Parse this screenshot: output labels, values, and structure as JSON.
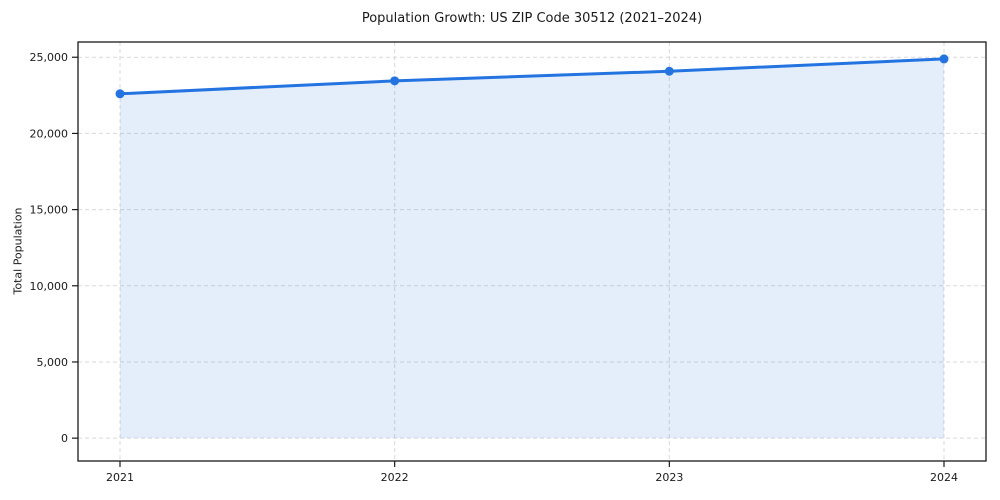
{
  "chart_data": {
    "type": "area",
    "title": "Population Growth: US ZIP Code 30512 (2021–2024)",
    "xlabel": "",
    "ylabel": "Total Population",
    "x": [
      2021,
      2022,
      2023,
      2024
    ],
    "xtick_labels": [
      "2021",
      "2022",
      "2023",
      "2024"
    ],
    "series": [
      {
        "name": "Total Population",
        "values": [
          22600,
          23450,
          24080,
          24890
        ]
      }
    ],
    "yticks": [
      0,
      5000,
      10000,
      15000,
      20000,
      25000
    ],
    "ytick_labels": [
      "0",
      "5,000",
      "10,000",
      "15,000",
      "20,000",
      "25,000"
    ],
    "ylim": [
      -1500,
      26000
    ],
    "grid": true,
    "legend_position": "none",
    "colors": {
      "line": "#2373e1",
      "marker": "#2373e1",
      "fill": "rgba(35, 115, 225, 0.12)",
      "grid": "#d9d9d9",
      "spine": "#1a1a1a",
      "text": "#1a1a1a",
      "background": "#ffffff"
    }
  }
}
